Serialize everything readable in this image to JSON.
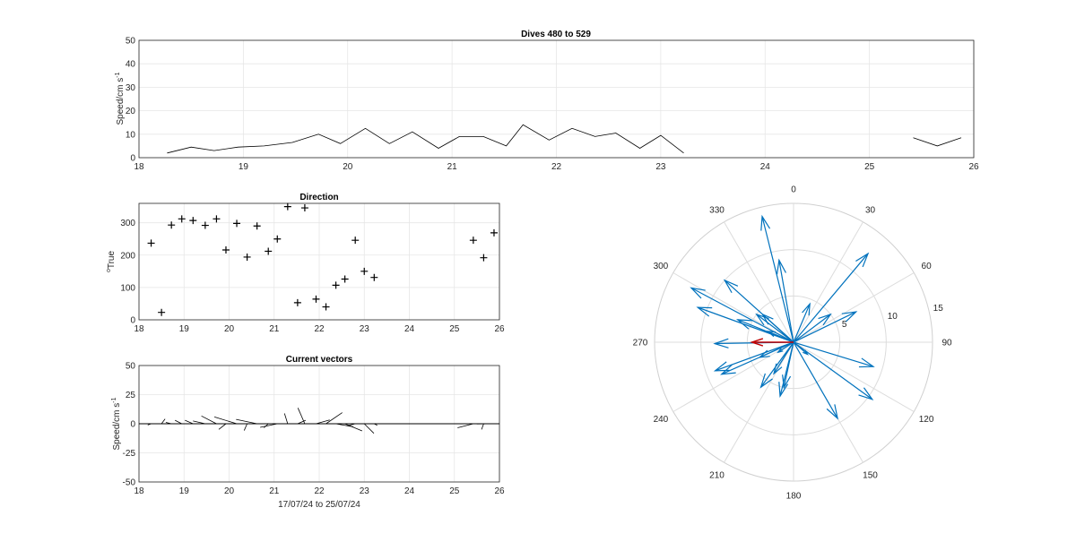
{
  "chart_data": [
    {
      "id": "speed",
      "type": "line",
      "title": "Dives 480 to 529",
      "ylabel": "Speed/cm s",
      "ylabel_sup": "-1",
      "xlim": [
        18,
        26
      ],
      "ylim": [
        0,
        50
      ],
      "xticks": [
        18,
        19,
        20,
        21,
        22,
        23,
        24,
        25,
        26
      ],
      "yticks": [
        0,
        10,
        20,
        30,
        40,
        50
      ],
      "grid": true,
      "segments": [
        {
          "x": [
            18.27,
            18.5,
            18.72,
            18.95,
            19.2,
            19.47,
            19.72,
            19.93,
            20.17,
            20.4,
            20.62,
            20.87,
            21.07,
            21.3,
            21.52,
            21.68,
            21.93,
            22.15,
            22.37,
            22.57,
            22.8,
            23.0,
            23.22
          ],
          "y": [
            2,
            4.5,
            3,
            4.5,
            5,
            6.5,
            10,
            6,
            12.5,
            6,
            11,
            4,
            9,
            9,
            5,
            14,
            7.5,
            12.5,
            9,
            10.5,
            4,
            9.5,
            2
          ]
        },
        {
          "x": [
            25.42,
            25.65,
            25.88
          ],
          "y": [
            8.5,
            5,
            8.5
          ]
        }
      ]
    },
    {
      "id": "direction",
      "type": "scatter",
      "title": "Direction",
      "ylabel": "True",
      "ylabel_sup": "o",
      "xlim": [
        18,
        26
      ],
      "ylim": [
        0,
        360
      ],
      "xticks": [
        18,
        19,
        20,
        21,
        22,
        23,
        24,
        25,
        26
      ],
      "yticks": [
        0,
        100,
        200,
        300
      ],
      "grid": true,
      "marker": "+",
      "x": [
        18.27,
        18.5,
        18.72,
        18.95,
        19.2,
        19.47,
        19.72,
        19.93,
        20.17,
        20.4,
        20.62,
        20.87,
        21.07,
        21.3,
        21.52,
        21.68,
        21.93,
        22.15,
        22.37,
        22.57,
        22.8,
        23.0,
        23.22,
        25.42,
        25.65,
        25.88
      ],
      "y": [
        237,
        23,
        293,
        312,
        307,
        292,
        312,
        216,
        298,
        194,
        290,
        212,
        250,
        350,
        53,
        346,
        64,
        40,
        107,
        126,
        246,
        150,
        131,
        246,
        192,
        269
      ]
    },
    {
      "id": "vectors",
      "type": "line",
      "title": "Current vectors",
      "xlabel": "17/07/24 to 25/07/24",
      "ylabel": "Speed/cm s",
      "ylabel_sup": "-1",
      "xlim": [
        18,
        26
      ],
      "ylim": [
        -50,
        50
      ],
      "xticks": [
        18,
        19,
        20,
        21,
        22,
        23,
        24,
        25,
        26
      ],
      "yticks": [
        -50,
        -25,
        0,
        25,
        50
      ],
      "grid": true
    },
    {
      "id": "polar",
      "type": "scatter",
      "rmax": 15,
      "rings": [
        5,
        10,
        15
      ],
      "angle_labels": [
        "0",
        "30",
        "60",
        "90",
        "120",
        "150",
        "180",
        "210",
        "240",
        "270",
        "300",
        "330"
      ],
      "mean_vector": {
        "dir": 270,
        "speed": 4.5,
        "color": "#c00000"
      },
      "vector_color": "#0072bd"
    }
  ]
}
